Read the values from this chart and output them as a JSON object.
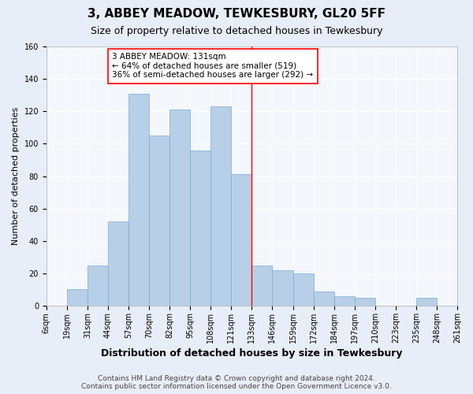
{
  "title": "3, ABBEY MEADOW, TEWKESBURY, GL20 5FF",
  "subtitle": "Size of property relative to detached houses in Tewkesbury",
  "xlabel": "Distribution of detached houses by size in Tewkesbury",
  "ylabel": "Number of detached properties",
  "footer1": "Contains HM Land Registry data © Crown copyright and database right 2024.",
  "footer2": "Contains public sector information licensed under the Open Government Licence v3.0.",
  "bin_labels": [
    "6sqm",
    "19sqm",
    "31sqm",
    "44sqm",
    "57sqm",
    "70sqm",
    "82sqm",
    "95sqm",
    "108sqm",
    "121sqm",
    "133sqm",
    "146sqm",
    "159sqm",
    "172sqm",
    "184sqm",
    "197sqm",
    "210sqm",
    "223sqm",
    "235sqm",
    "248sqm",
    "261sqm"
  ],
  "bar_values": [
    0,
    10,
    25,
    52,
    131,
    105,
    121,
    96,
    123,
    81,
    25,
    22,
    20,
    9,
    6,
    5,
    0,
    0,
    5,
    0
  ],
  "bar_color": "#b8cfe8",
  "bar_edge_color": "#7aaad0",
  "marker_color": "red",
  "ylim": [
    0,
    160
  ],
  "yticks": [
    0,
    20,
    40,
    60,
    80,
    100,
    120,
    140,
    160
  ],
  "bg_color": "#e8eef8",
  "plot_bg_color": "#f4f7fc",
  "title_fontsize": 11,
  "subtitle_fontsize": 9,
  "xlabel_fontsize": 9,
  "ylabel_fontsize": 8,
  "tick_fontsize": 7,
  "footer_fontsize": 6.5,
  "annot_fontsize": 7.5,
  "marker_bin_index": 10,
  "annot_text_line1": "3 ABBEY MEADOW: 131sqm",
  "annot_text_line2": "← 64% of detached houses are smaller (519)",
  "annot_text_line3": "36% of semi-detached houses are larger (292) →"
}
